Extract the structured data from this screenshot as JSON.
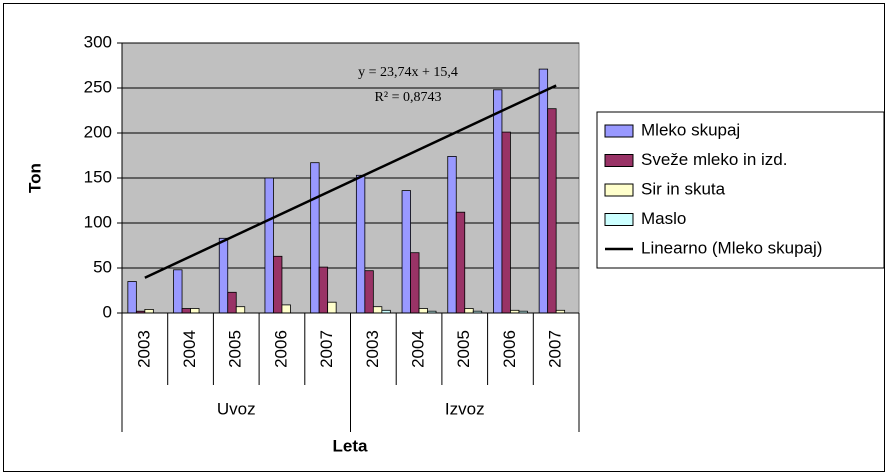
{
  "chart_data": {
    "type": "bar",
    "y_label": "Ton",
    "x_label": "Leta",
    "categories": [
      "2003",
      "2004",
      "2005",
      "2006",
      "2007",
      "2003",
      "2004",
      "2005",
      "2006",
      "2007"
    ],
    "groups": [
      "Uvoz",
      "Izvoz"
    ],
    "ylim": [
      0,
      300
    ],
    "yticks": [
      0,
      50,
      100,
      150,
      200,
      250,
      300
    ],
    "grid": true,
    "series": [
      {
        "name": "Mleko skupaj",
        "color": "#9999ff",
        "values": [
          35,
          48,
          83,
          150,
          167,
          153,
          136,
          174,
          248,
          271
        ]
      },
      {
        "name": "Sveže mleko in izd.",
        "color": "#993366",
        "values": [
          2,
          5,
          23,
          63,
          51,
          47,
          67,
          112,
          201,
          227
        ]
      },
      {
        "name": "Sir in skuta",
        "color": "#ffffcc",
        "values": [
          4,
          5,
          7,
          9,
          12,
          7,
          5,
          5,
          3,
          3
        ]
      },
      {
        "name": "Maslo",
        "color": "#ccffff",
        "values": [
          0,
          0,
          0,
          0,
          0,
          3,
          2,
          2,
          2,
          0
        ]
      }
    ],
    "trendline": {
      "name": "Linearno (Mleko skupaj)",
      "color": "#000000",
      "slope": 23.74,
      "intercept": 15.4,
      "equation_label": "y = 23,74x + 15,4",
      "r2_label": "R² = 0,8743"
    },
    "legend": "right"
  }
}
